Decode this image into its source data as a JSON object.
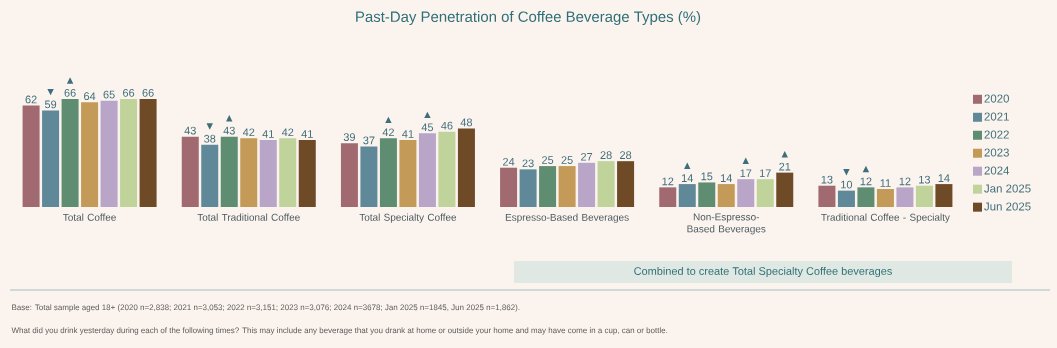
{
  "chart_data": {
    "type": "bar",
    "title": "Past-Day Penetration of Coffee Beverage Types (%)",
    "categories": [
      "Total Coffee",
      "Total Traditional Coffee",
      "Total Specialty Coffee",
      "Espresso-Based Beverages",
      "Non-Espresso-Based Beverages",
      "Traditional Coffee - Specialty"
    ],
    "series": [
      {
        "name": "2020",
        "color": "#a06a70",
        "values": [
          62,
          43,
          39,
          24,
          12,
          13
        ],
        "value_labels": [
          "62",
          "43",
          "39",
          "24",
          "12",
          "13"
        ]
      },
      {
        "name": "2021",
        "color": "#5f8898",
        "values": [
          59,
          38,
          37,
          23,
          14,
          10
        ],
        "value_labels": [
          "▼ 59",
          "▼ 38",
          "37",
          "23",
          "▲ 14",
          "▼ 10"
        ]
      },
      {
        "name": "2022",
        "color": "#5f8d72",
        "values": [
          66,
          43,
          42,
          25,
          15,
          12
        ],
        "value_labels": [
          "▲ 66",
          "▲ 43",
          "▲ 42",
          "25",
          "15",
          "▲ 12"
        ]
      },
      {
        "name": "2023",
        "color": "#c39a57",
        "values": [
          64,
          42,
          41,
          25,
          14,
          11
        ],
        "value_labels": [
          "64",
          "42",
          "41",
          "25",
          "14",
          "11"
        ]
      },
      {
        "name": "2024",
        "color": "#b8a5c8",
        "values": [
          65,
          41,
          45,
          27,
          17,
          12
        ],
        "value_labels": [
          "65",
          "41",
          "▲ 45",
          "27",
          "▲ 17",
          "12"
        ]
      },
      {
        "name": "Jan 2025",
        "color": "#bfd39b",
        "values": [
          66,
          42,
          46,
          28,
          17,
          13
        ],
        "value_labels": [
          "66",
          "42",
          "46",
          "28",
          "17",
          "13"
        ]
      },
      {
        "name": "Jun 2025",
        "color": "#6e4a26",
        "values": [
          66,
          41,
          48,
          28,
          21,
          14
        ],
        "value_labels": [
          "66",
          "41",
          "48",
          "28",
          "▲ 21",
          "14"
        ]
      }
    ],
    "tick_labels": "x",
    "legend": "right",
    "annotations": [
      "Combined to create Total Specialty Coffee beverages",
      "Base: Total sample aged 18+ (2020 n=2,838; 2021 n=3,053; 2022 n=3,151; 2023 n=3,076; 2024 n=3678; Jan 2025 n=1845, Jun 2025 n=1,862).",
      "What did you drink yesterday during each of the following times? This may include any beverage that you drank at home or outside your home and may have come in a cup, can or bottle."
    ]
  }
}
